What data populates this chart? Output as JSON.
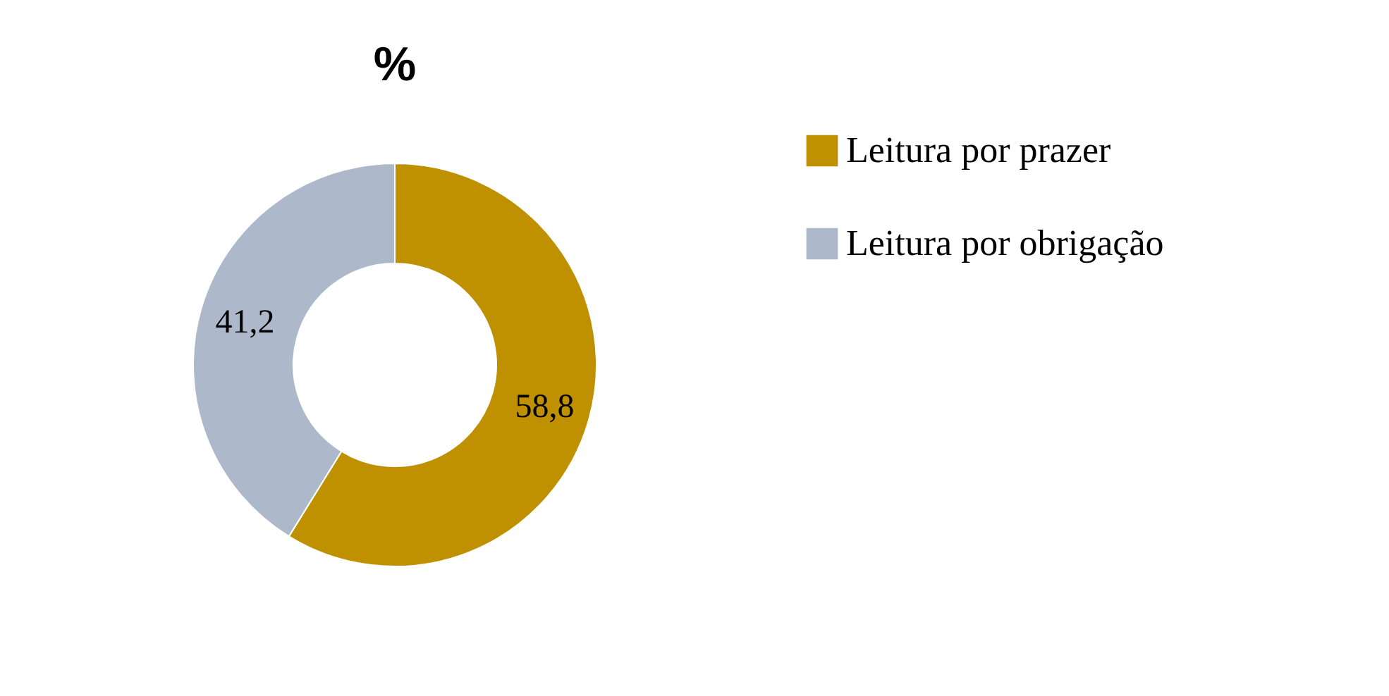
{
  "chart_data": {
    "type": "donut",
    "title": "%",
    "categories": [
      "Leitura por prazer",
      "Leitura por obrigação"
    ],
    "values": [
      58.8,
      41.2
    ],
    "value_labels": [
      "58,8",
      "41,2"
    ],
    "colors": [
      "#bf9000",
      "#adb9ca"
    ],
    "legend": "right"
  }
}
